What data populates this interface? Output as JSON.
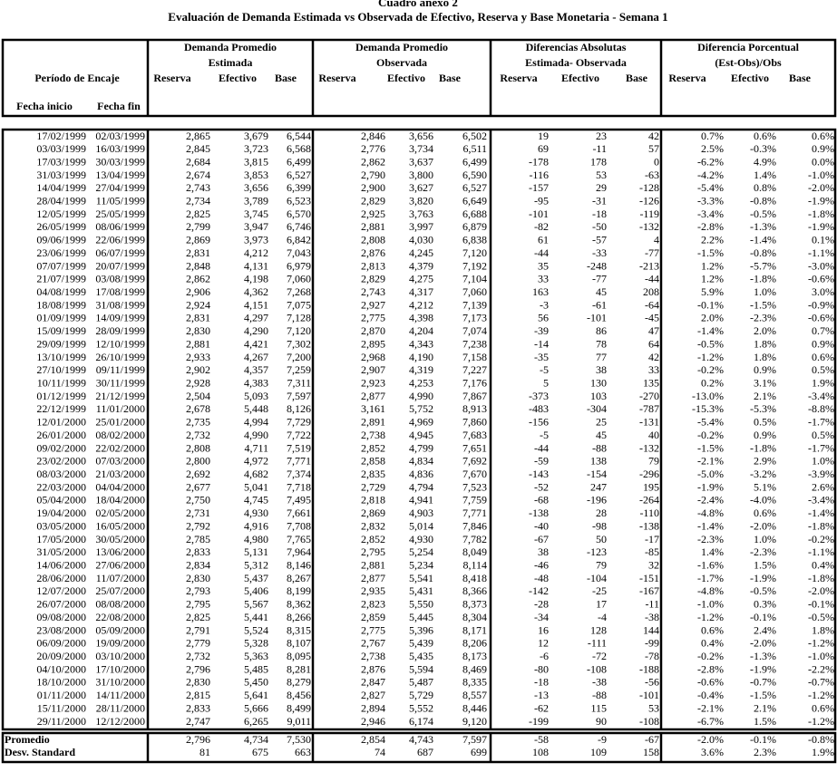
{
  "title": "Cuadro anexo 2",
  "subtitle": "Evaluación de Demanda Estimada vs Observada de Efectivo, Reserva y Base Monetaria - Semana 1",
  "header": {
    "periodo": "Período de Encaje",
    "fecha_inicio": "Fecha inicio",
    "fecha_fin": "Fecha fin",
    "groups": [
      [
        "Demanda Promedio",
        "Estimada"
      ],
      [
        "Demanda Promedio",
        "Observada"
      ],
      [
        "Diferencias Absolutas",
        "Estimada- Observada"
      ],
      [
        "Diferencia Porcentual",
        "(Est-Obs)/Obs"
      ]
    ],
    "subcolumns": [
      "Reserva",
      "Efectivo",
      "Base"
    ]
  },
  "rows": [
    [
      "17/02/1999",
      "02/03/1999",
      "2,865",
      "3,679",
      "6,544",
      "2,846",
      "3,656",
      "6,502",
      "19",
      "23",
      "42",
      "0.7%",
      "0.6%",
      "0.6%"
    ],
    [
      "03/03/1999",
      "16/03/1999",
      "2,845",
      "3,723",
      "6,568",
      "2,776",
      "3,734",
      "6,511",
      "69",
      "-11",
      "57",
      "2.5%",
      "-0.3%",
      "0.9%"
    ],
    [
      "17/03/1999",
      "30/03/1999",
      "2,684",
      "3,815",
      "6,499",
      "2,862",
      "3,637",
      "6,499",
      "-178",
      "178",
      "0",
      "-6.2%",
      "4.9%",
      "0.0%"
    ],
    [
      "31/03/1999",
      "13/04/1999",
      "2,674",
      "3,853",
      "6,527",
      "2,790",
      "3,800",
      "6,590",
      "-116",
      "53",
      "-63",
      "-4.2%",
      "1.4%",
      "-1.0%"
    ],
    [
      "14/04/1999",
      "27/04/1999",
      "2,743",
      "3,656",
      "6,399",
      "2,900",
      "3,627",
      "6,527",
      "-157",
      "29",
      "-128",
      "-5.4%",
      "0.8%",
      "-2.0%"
    ],
    [
      "28/04/1999",
      "11/05/1999",
      "2,734",
      "3,789",
      "6,523",
      "2,829",
      "3,820",
      "6,649",
      "-95",
      "-31",
      "-126",
      "-3.3%",
      "-0.8%",
      "-1.9%"
    ],
    [
      "12/05/1999",
      "25/05/1999",
      "2,825",
      "3,745",
      "6,570",
      "2,925",
      "3,763",
      "6,688",
      "-101",
      "-18",
      "-119",
      "-3.4%",
      "-0.5%",
      "-1.8%"
    ],
    [
      "26/05/1999",
      "08/06/1999",
      "2,799",
      "3,947",
      "6,746",
      "2,881",
      "3,997",
      "6,879",
      "-82",
      "-50",
      "-132",
      "-2.8%",
      "-1.3%",
      "-1.9%"
    ],
    [
      "09/06/1999",
      "22/06/1999",
      "2,869",
      "3,973",
      "6,842",
      "2,808",
      "4,030",
      "6,838",
      "61",
      "-57",
      "4",
      "2.2%",
      "-1.4%",
      "0.1%"
    ],
    [
      "23/06/1999",
      "06/07/1999",
      "2,831",
      "4,212",
      "7,043",
      "2,876",
      "4,245",
      "7,120",
      "-44",
      "-33",
      "-77",
      "-1.5%",
      "-0.8%",
      "-1.1%"
    ],
    [
      "07/07/1999",
      "20/07/1999",
      "2,848",
      "4,131",
      "6,979",
      "2,813",
      "4,379",
      "7,192",
      "35",
      "-248",
      "-213",
      "1.2%",
      "-5.7%",
      "-3.0%"
    ],
    [
      "21/07/1999",
      "03/08/1999",
      "2,862",
      "4,198",
      "7,060",
      "2,829",
      "4,275",
      "7,104",
      "33",
      "-77",
      "-44",
      "1.2%",
      "-1.8%",
      "-0.6%"
    ],
    [
      "04/08/1999",
      "17/08/1999",
      "2,906",
      "4,362",
      "7,268",
      "2,743",
      "4,317",
      "7,060",
      "163",
      "45",
      "208",
      "5.9%",
      "1.0%",
      "3.0%"
    ],
    [
      "18/08/1999",
      "31/08/1999",
      "2,924",
      "4,151",
      "7,075",
      "2,927",
      "4,212",
      "7,139",
      "-3",
      "-61",
      "-64",
      "-0.1%",
      "-1.5%",
      "-0.9%"
    ],
    [
      "01/09/1999",
      "14/09/1999",
      "2,831",
      "4,297",
      "7,128",
      "2,775",
      "4,398",
      "7,173",
      "56",
      "-101",
      "-45",
      "2.0%",
      "-2.3%",
      "-0.6%"
    ],
    [
      "15/09/1999",
      "28/09/1999",
      "2,830",
      "4,290",
      "7,120",
      "2,870",
      "4,204",
      "7,074",
      "-39",
      "86",
      "47",
      "-1.4%",
      "2.0%",
      "0.7%"
    ],
    [
      "29/09/1999",
      "12/10/1999",
      "2,881",
      "4,421",
      "7,302",
      "2,895",
      "4,343",
      "7,238",
      "-14",
      "78",
      "64",
      "-0.5%",
      "1.8%",
      "0.9%"
    ],
    [
      "13/10/1999",
      "26/10/1999",
      "2,933",
      "4,267",
      "7,200",
      "2,968",
      "4,190",
      "7,158",
      "-35",
      "77",
      "42",
      "-1.2%",
      "1.8%",
      "0.6%"
    ],
    [
      "27/10/1999",
      "09/11/1999",
      "2,902",
      "4,357",
      "7,259",
      "2,907",
      "4,319",
      "7,227",
      "-5",
      "38",
      "33",
      "-0.2%",
      "0.9%",
      "0.5%"
    ],
    [
      "10/11/1999",
      "30/11/1999",
      "2,928",
      "4,383",
      "7,311",
      "2,923",
      "4,253",
      "7,176",
      "5",
      "130",
      "135",
      "0.2%",
      "3.1%",
      "1.9%"
    ],
    [
      "01/12/1999",
      "21/12/1999",
      "2,504",
      "5,093",
      "7,597",
      "2,877",
      "4,990",
      "7,867",
      "-373",
      "103",
      "-270",
      "-13.0%",
      "2.1%",
      "-3.4%"
    ],
    [
      "22/12/1999",
      "11/01/2000",
      "2,678",
      "5,448",
      "8,126",
      "3,161",
      "5,752",
      "8,913",
      "-483",
      "-304",
      "-787",
      "-15.3%",
      "-5.3%",
      "-8.8%"
    ],
    [
      "12/01/2000",
      "25/01/2000",
      "2,735",
      "4,994",
      "7,729",
      "2,891",
      "4,969",
      "7,860",
      "-156",
      "25",
      "-131",
      "-5.4%",
      "0.5%",
      "-1.7%"
    ],
    [
      "26/01/2000",
      "08/02/2000",
      "2,732",
      "4,990",
      "7,722",
      "2,738",
      "4,945",
      "7,683",
      "-5",
      "45",
      "40",
      "-0.2%",
      "0.9%",
      "0.5%"
    ],
    [
      "09/02/2000",
      "22/02/2000",
      "2,808",
      "4,711",
      "7,519",
      "2,852",
      "4,799",
      "7,651",
      "-44",
      "-88",
      "-132",
      "-1.5%",
      "-1.8%",
      "-1.7%"
    ],
    [
      "23/02/2000",
      "07/03/2000",
      "2,800",
      "4,972",
      "7,771",
      "2,858",
      "4,834",
      "7,692",
      "-59",
      "138",
      "79",
      "-2.1%",
      "2.9%",
      "1.0%"
    ],
    [
      "08/03/2000",
      "21/03/2000",
      "2,692",
      "4,682",
      "7,374",
      "2,835",
      "4,836",
      "7,670",
      "-143",
      "-154",
      "-296",
      "-5.0%",
      "-3.2%",
      "-3.9%"
    ],
    [
      "22/03/2000",
      "04/04/2000",
      "2,677",
      "5,041",
      "7,718",
      "2,729",
      "4,794",
      "7,523",
      "-52",
      "247",
      "195",
      "-1.9%",
      "5.1%",
      "2.6%"
    ],
    [
      "05/04/2000",
      "18/04/2000",
      "2,750",
      "4,745",
      "7,495",
      "2,818",
      "4,941",
      "7,759",
      "-68",
      "-196",
      "-264",
      "-2.4%",
      "-4.0%",
      "-3.4%"
    ],
    [
      "19/04/2000",
      "02/05/2000",
      "2,731",
      "4,930",
      "7,661",
      "2,869",
      "4,903",
      "7,771",
      "-138",
      "28",
      "-110",
      "-4.8%",
      "0.6%",
      "-1.4%"
    ],
    [
      "03/05/2000",
      "16/05/2000",
      "2,792",
      "4,916",
      "7,708",
      "2,832",
      "5,014",
      "7,846",
      "-40",
      "-98",
      "-138",
      "-1.4%",
      "-2.0%",
      "-1.8%"
    ],
    [
      "17/05/2000",
      "30/05/2000",
      "2,785",
      "4,980",
      "7,765",
      "2,852",
      "4,930",
      "7,782",
      "-67",
      "50",
      "-17",
      "-2.3%",
      "1.0%",
      "-0.2%"
    ],
    [
      "31/05/2000",
      "13/06/2000",
      "2,833",
      "5,131",
      "7,964",
      "2,795",
      "5,254",
      "8,049",
      "38",
      "-123",
      "-85",
      "1.4%",
      "-2.3%",
      "-1.1%"
    ],
    [
      "14/06/2000",
      "27/06/2000",
      "2,834",
      "5,312",
      "8,146",
      "2,881",
      "5,234",
      "8,114",
      "-46",
      "79",
      "32",
      "-1.6%",
      "1.5%",
      "0.4%"
    ],
    [
      "28/06/2000",
      "11/07/2000",
      "2,830",
      "5,437",
      "8,267",
      "2,877",
      "5,541",
      "8,418",
      "-48",
      "-104",
      "-151",
      "-1.7%",
      "-1.9%",
      "-1.8%"
    ],
    [
      "12/07/2000",
      "25/07/2000",
      "2,793",
      "5,406",
      "8,199",
      "2,935",
      "5,431",
      "8,366",
      "-142",
      "-25",
      "-167",
      "-4.8%",
      "-0.5%",
      "-2.0%"
    ],
    [
      "26/07/2000",
      "08/08/2000",
      "2,795",
      "5,567",
      "8,362",
      "2,823",
      "5,550",
      "8,373",
      "-28",
      "17",
      "-11",
      "-1.0%",
      "0.3%",
      "-0.1%"
    ],
    [
      "09/08/2000",
      "22/08/2000",
      "2,825",
      "5,441",
      "8,266",
      "2,859",
      "5,445",
      "8,304",
      "-34",
      "-4",
      "-38",
      "-1.2%",
      "-0.1%",
      "-0.5%"
    ],
    [
      "23/08/2000",
      "05/09/2000",
      "2,791",
      "5,524",
      "8,315",
      "2,775",
      "5,396",
      "8,171",
      "16",
      "128",
      "144",
      "0.6%",
      "2.4%",
      "1.8%"
    ],
    [
      "06/09/2000",
      "19/09/2000",
      "2,779",
      "5,328",
      "8,107",
      "2,767",
      "5,439",
      "8,206",
      "12",
      "-111",
      "-99",
      "0.4%",
      "-2.0%",
      "-1.2%"
    ],
    [
      "20/09/2000",
      "03/10/2000",
      "2,732",
      "5,363",
      "8,095",
      "2,738",
      "5,435",
      "8,173",
      "-6",
      "-72",
      "-78",
      "-0.2%",
      "-1.3%",
      "-1.0%"
    ],
    [
      "04/10/2000",
      "17/10/2000",
      "2,796",
      "5,485",
      "8,281",
      "2,876",
      "5,594",
      "8,469",
      "-80",
      "-108",
      "-188",
      "-2.8%",
      "-1.9%",
      "-2.2%"
    ],
    [
      "18/10/2000",
      "31/10/2000",
      "2,830",
      "5,450",
      "8,279",
      "2,847",
      "5,487",
      "8,335",
      "-18",
      "-38",
      "-56",
      "-0.6%",
      "-0.7%",
      "-0.7%"
    ],
    [
      "01/11/2000",
      "14/11/2000",
      "2,815",
      "5,641",
      "8,456",
      "2,827",
      "5,729",
      "8,557",
      "-13",
      "-88",
      "-101",
      "-0.4%",
      "-1.5%",
      "-1.2%"
    ],
    [
      "15/11/2000",
      "28/11/2000",
      "2,833",
      "5,666",
      "8,499",
      "2,894",
      "5,552",
      "8,446",
      "-62",
      "115",
      "53",
      "-2.1%",
      "2.1%",
      "0.6%"
    ],
    [
      "29/11/2000",
      "12/12/2000",
      "2,747",
      "6,265",
      "9,011",
      "2,946",
      "6,174",
      "9,120",
      "-199",
      "90",
      "-108",
      "-6.7%",
      "1.5%",
      "-1.2%"
    ]
  ],
  "summary": [
    {
      "label": "Promedio",
      "values": [
        "2,796",
        "4,734",
        "7,530",
        "2,854",
        "4,743",
        "7,597",
        "-58",
        "-9",
        "-67",
        "-2.0%",
        "-0.1%",
        "-0.8%"
      ]
    },
    {
      "label": "Desv. Standard",
      "values": [
        "81",
        "675",
        "663",
        "74",
        "687",
        "699",
        "108",
        "109",
        "158",
        "3.6%",
        "2.3%",
        "1.9%"
      ]
    }
  ]
}
